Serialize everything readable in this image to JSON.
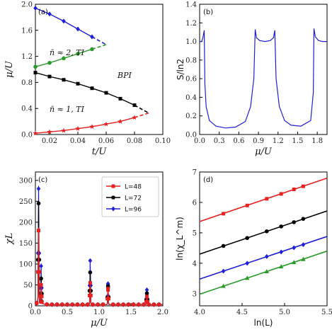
{
  "chart_data": [
    {
      "panel": "(a)",
      "type": "line",
      "xlabel": "t/U",
      "ylabel": "μ/U",
      "xlim": [
        0.01,
        0.1
      ],
      "ylim": [
        0.0,
        2.0
      ],
      "xticks": [
        "0.02",
        "0.04",
        "0.06",
        "0.08",
        "0.10"
      ],
      "yticks": [
        "0.0",
        "0.4",
        "0.8",
        "1.2",
        "1.6",
        "2.0"
      ],
      "annotations": [
        "n̄ ≈ 2, TI",
        "n̄ ≈ 1, TI",
        "BPI"
      ],
      "series": [
        {
          "color": "#1f1fd6",
          "marker": "diamond",
          "x": [
            0.01,
            0.02,
            0.03,
            0.04,
            0.05,
            0.06
          ],
          "y": [
            1.94,
            1.85,
            1.74,
            1.62,
            1.5,
            1.38
          ]
        },
        {
          "color": "#2a9a2a",
          "marker": "circle",
          "x": [
            0.01,
            0.02,
            0.03,
            0.04,
            0.05,
            0.06
          ],
          "y": [
            1.04,
            1.1,
            1.17,
            1.24,
            1.31,
            1.38
          ]
        },
        {
          "color": "#000000",
          "marker": "square",
          "x": [
            0.01,
            0.02,
            0.03,
            0.04,
            0.05,
            0.06,
            0.07,
            0.08,
            0.09
          ],
          "y": [
            0.95,
            0.89,
            0.84,
            0.78,
            0.71,
            0.64,
            0.55,
            0.45,
            0.33
          ]
        },
        {
          "color": "#e82020",
          "marker": "star",
          "x": [
            0.01,
            0.02,
            0.03,
            0.04,
            0.05,
            0.06,
            0.07,
            0.08,
            0.09
          ],
          "y": [
            0.02,
            0.04,
            0.06,
            0.09,
            0.12,
            0.16,
            0.2,
            0.26,
            0.33
          ]
        }
      ]
    },
    {
      "panel": "(b)",
      "type": "line",
      "xlabel": "μ/U",
      "ylabel": "S/ln2",
      "xlim": [
        0.0,
        1.95
      ],
      "ylim": [
        0.0,
        1.4
      ],
      "xticks": [
        "0.0",
        "0.3",
        "0.6",
        "0.9",
        "1.2",
        "1.5",
        "1.8"
      ],
      "yticks": [
        "0.0",
        "0.2",
        "0.4",
        "0.6",
        "0.8",
        "1.0",
        "1.2",
        "1.4"
      ],
      "series": [
        {
          "color": "#1f1fd6",
          "x": [
            0.0,
            0.03,
            0.05,
            0.07,
            0.08,
            0.1,
            0.15,
            0.25,
            0.4,
            0.55,
            0.7,
            0.78,
            0.83,
            0.85,
            0.87,
            0.92,
            1.0,
            1.08,
            1.13,
            1.15,
            1.17,
            1.22,
            1.3,
            1.4,
            1.55,
            1.7,
            1.74,
            1.75,
            1.77,
            1.82,
            1.88,
            1.95
          ],
          "y": [
            1.0,
            1.0,
            1.04,
            1.12,
            0.55,
            0.3,
            0.15,
            0.09,
            0.07,
            0.08,
            0.14,
            0.3,
            0.6,
            1.13,
            1.04,
            1.01,
            1.0,
            1.01,
            1.04,
            1.12,
            0.6,
            0.3,
            0.15,
            0.1,
            0.09,
            0.15,
            0.45,
            1.14,
            1.05,
            1.01,
            1.0,
            1.0
          ]
        }
      ]
    },
    {
      "panel": "(c)",
      "type": "line",
      "xlabel": "μ/U",
      "ylabel": "χL",
      "xlim": [
        0.0,
        2.0
      ],
      "ylim": [
        0,
        320
      ],
      "xticks": [
        "0.0",
        "0.5",
        "1.0",
        "1.5",
        "2.0"
      ],
      "yticks": [
        "0",
        "50",
        "100",
        "150",
        "200",
        "250",
        "300"
      ],
      "legend_position": "top-right",
      "series": [
        {
          "name": "L=48",
          "color": "#e82020",
          "marker": "square",
          "peaks": [
            [
              0.05,
              180
            ],
            [
              0.09,
              50
            ],
            [
              0.86,
              55
            ],
            [
              1.14,
              38
            ],
            [
              1.75,
              22
            ]
          ]
        },
        {
          "name": "L=72",
          "color": "#000000",
          "marker": "circle",
          "peaks": [
            [
              0.05,
              245
            ],
            [
              0.09,
              65
            ],
            [
              0.86,
              80
            ],
            [
              1.14,
              44
            ],
            [
              1.75,
              30
            ]
          ]
        },
        {
          "name": "L=96",
          "color": "#1f1fd6",
          "marker": "diamond",
          "peaks": [
            [
              0.05,
              280
            ],
            [
              0.09,
              95
            ],
            [
              0.86,
              108
            ],
            [
              1.14,
              50
            ],
            [
              1.75,
              38
            ]
          ]
        }
      ]
    },
    {
      "panel": "(d)",
      "type": "line",
      "xlabel": "ln(L)",
      "ylabel": "ln(χ_L^m)",
      "xlim": [
        4.0,
        5.5
      ],
      "ylim": [
        2.6,
        7.0
      ],
      "xticks": [
        "4.0",
        "4.5",
        "5.0",
        "5.5"
      ],
      "yticks": [
        "3",
        "4",
        "5",
        "6",
        "7"
      ],
      "series": [
        {
          "color": "#e82020",
          "marker": "square",
          "fit": [
            [
              4.0,
              5.37
            ],
            [
              5.5,
              6.8
            ]
          ],
          "x": [
            4.28,
            4.56,
            4.79,
            4.96,
            5.11,
            5.22
          ],
          "y": [
            5.63,
            5.9,
            6.12,
            6.28,
            6.43,
            6.53
          ]
        },
        {
          "color": "#000000",
          "marker": "circle",
          "fit": [
            [
              4.0,
              4.3
            ],
            [
              5.5,
              5.72
            ]
          ],
          "x": [
            4.28,
            4.56,
            4.79,
            4.96,
            5.11,
            5.22
          ],
          "y": [
            4.57,
            4.83,
            5.05,
            5.21,
            5.35,
            5.46
          ]
        },
        {
          "color": "#1f1fd6",
          "marker": "diamond",
          "fit": [
            [
              4.0,
              3.48
            ],
            [
              5.5,
              4.88
            ]
          ],
          "x": [
            4.28,
            4.56,
            4.79,
            4.96,
            5.11,
            5.22
          ],
          "y": [
            3.74,
            4.0,
            4.22,
            4.37,
            4.51,
            4.61
          ]
        },
        {
          "color": "#2a9a2a",
          "marker": "triangle",
          "fit": [
            [
              4.0,
              2.98
            ],
            [
              5.5,
              4.4
            ]
          ],
          "x": [
            4.28,
            4.56,
            4.79,
            4.96,
            5.11,
            5.22
          ],
          "y": [
            3.25,
            3.51,
            3.73,
            3.89,
            4.03,
            4.13
          ]
        }
      ]
    }
  ]
}
